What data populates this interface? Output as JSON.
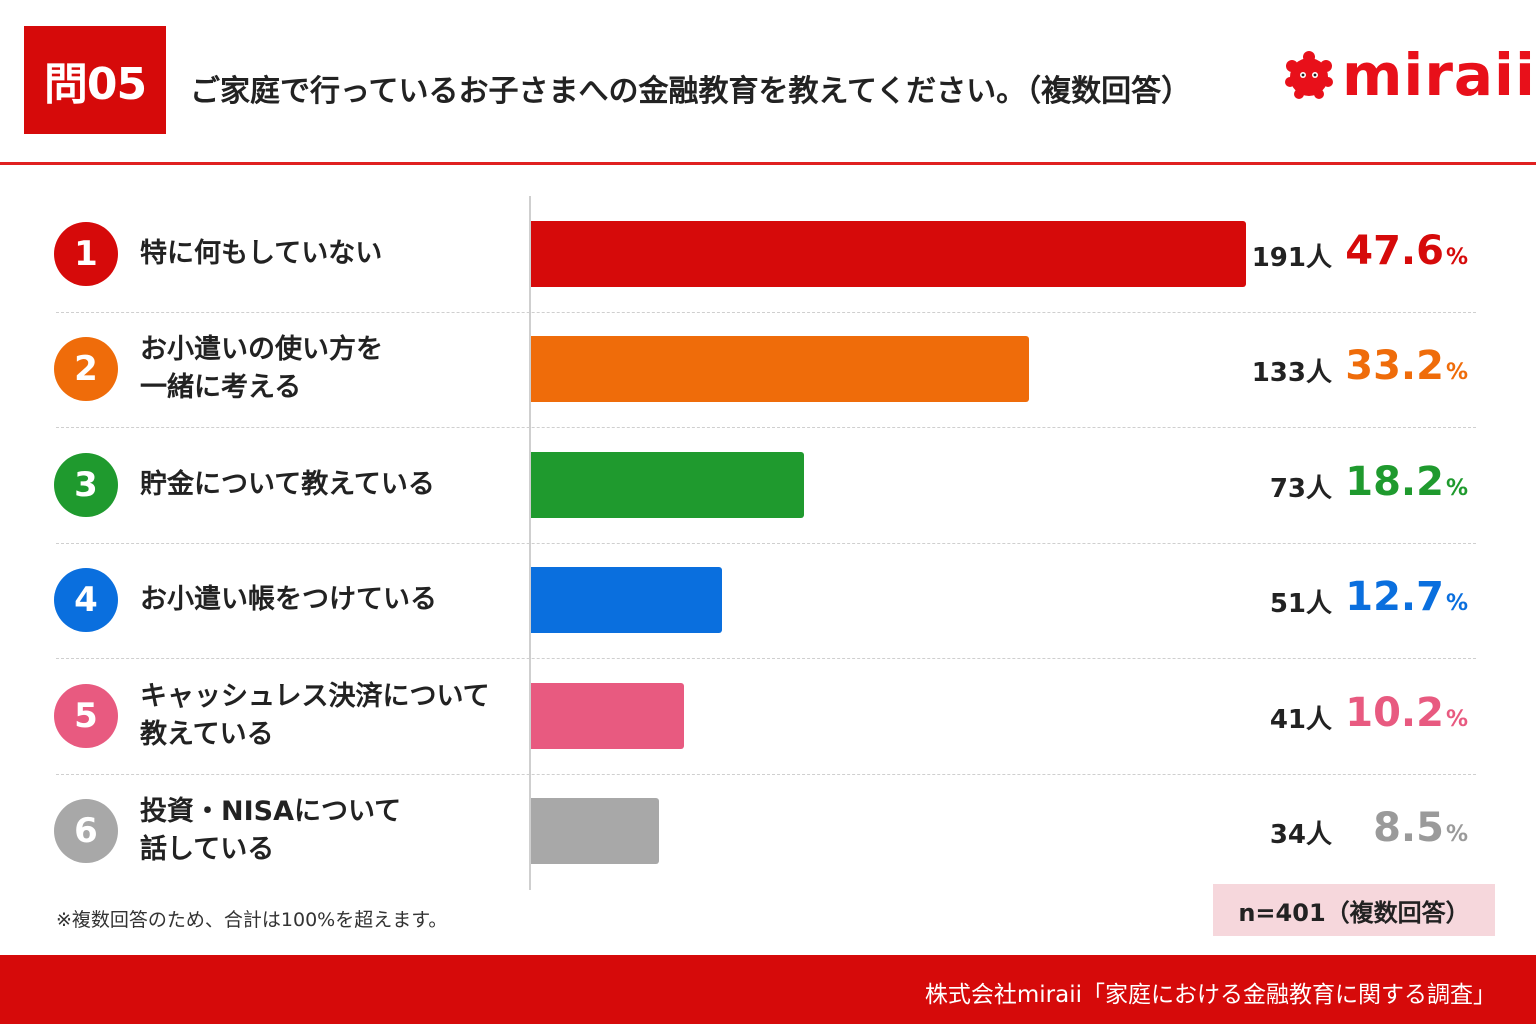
{
  "header": {
    "question_badge": "問05",
    "title": "ご家庭で行っているお子さまへの金融教育を教えてください。（複数回答）",
    "logo_text": "miraii",
    "accent_color": "#d60a0a"
  },
  "chart_data": {
    "type": "bar",
    "orientation": "horizontal",
    "title": "ご家庭で行っているお子さまへの金融教育を教えてください。（複数回答）",
    "categories": [
      "特に何もしていない",
      "お小遣いの使い方を一緒に考える",
      "貯金について教えている",
      "お小遣い帳をつけている",
      "キャッシュレス決済について教えている",
      "投資・NISAについて話している"
    ],
    "series": [
      {
        "values": [
          47.6,
          33.2,
          18.2,
          12.7,
          10.2,
          8.5
        ]
      }
    ],
    "xlim": [
      0,
      67
    ],
    "items": [
      {
        "rank": "1",
        "label_lines": [
          "特に何もしていない"
        ],
        "count_text": "191人",
        "pct_text": "47.6",
        "value": 47.6,
        "color": "#d60a0a"
      },
      {
        "rank": "2",
        "label_lines": [
          "お小遣いの使い方を",
          "一緒に考える"
        ],
        "count_text": "133人",
        "pct_text": "33.2",
        "value": 33.2,
        "color": "#ef6c0a"
      },
      {
        "rank": "3",
        "label_lines": [
          "貯金について教えている"
        ],
        "count_text": "73人",
        "pct_text": "18.2",
        "value": 18.2,
        "color": "#1f9a2e"
      },
      {
        "rank": "4",
        "label_lines": [
          "お小遣い帳をつけている"
        ],
        "count_text": "51人",
        "pct_text": "12.7",
        "value": 12.7,
        "color": "#0a6fde"
      },
      {
        "rank": "5",
        "label_lines": [
          "キャッシュレス決済について",
          "教えている"
        ],
        "count_text": "41人",
        "pct_text": "10.2",
        "value": 10.2,
        "color": "#e85a80"
      },
      {
        "rank": "6",
        "label_lines": [
          "投資・NISAについて",
          "話している"
        ],
        "count_text": "34人",
        "pct_text": "8.5",
        "value": 8.5,
        "color": "#a8a8a8"
      }
    ],
    "percent_sign": "%",
    "legend": "none",
    "grid": false
  },
  "note": "※複数回答のため、合計は100%を超えます。",
  "sample_size": "n=401（複数回答）",
  "footer": {
    "source": "株式会社miraii「家庭における金融教育に関する調査」"
  }
}
